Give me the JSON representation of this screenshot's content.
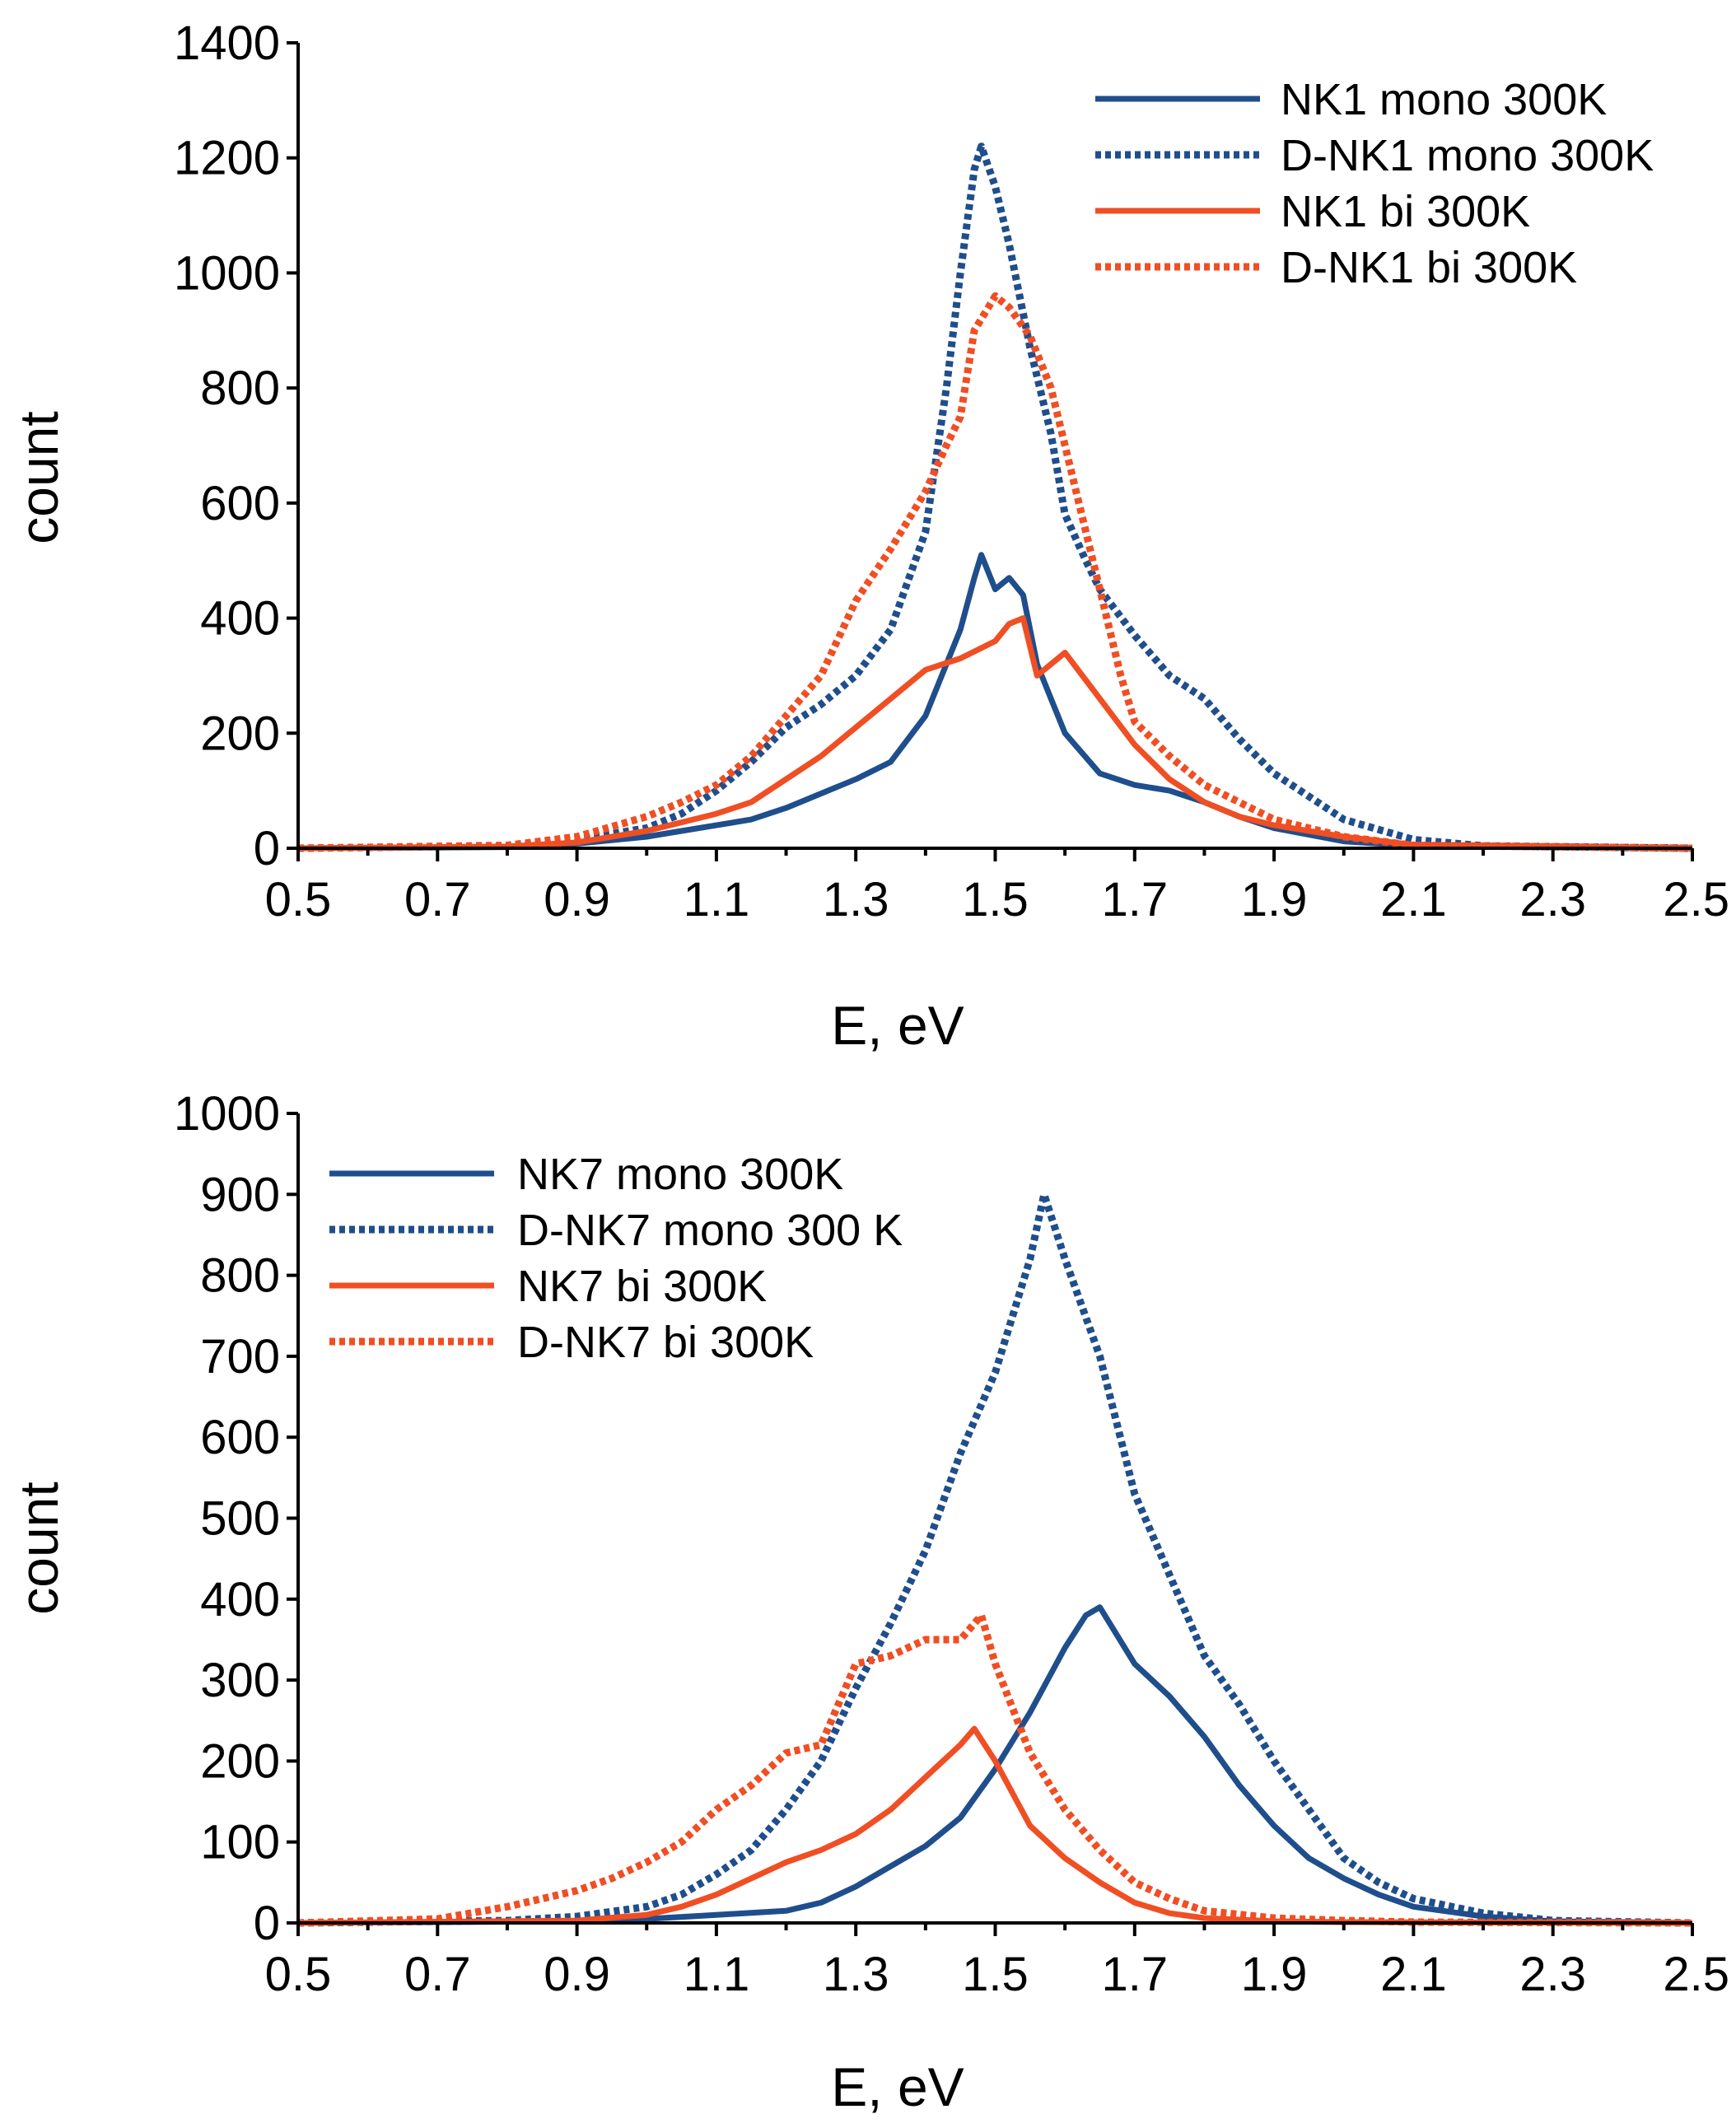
{
  "chart_data": [
    {
      "type": "line",
      "title": "",
      "xlabel": "E, eV",
      "ylabel": "count",
      "xlim": [
        0.5,
        2.5
      ],
      "ylim": [
        0,
        1400
      ],
      "xticks": [
        "0.5",
        "0.7",
        "0.9",
        "1.1",
        "1.3",
        "1.5",
        "1.7",
        "1.9",
        "2.1",
        "2.3",
        "2.5"
      ],
      "yticks": [
        "0",
        "200",
        "400",
        "600",
        "800",
        "1000",
        "1200",
        "1400"
      ],
      "grid": false,
      "legend_position": "top-right",
      "series": [
        {
          "name": "NK1 mono 300K",
          "color": "#1f4e8c",
          "style": "solid",
          "x": [
            0.5,
            0.8,
            0.9,
            1.0,
            1.05,
            1.1,
            1.15,
            1.2,
            1.25,
            1.3,
            1.35,
            1.4,
            1.45,
            1.47,
            1.48,
            1.5,
            1.52,
            1.54,
            1.56,
            1.58,
            1.6,
            1.65,
            1.7,
            1.75,
            1.8,
            1.85,
            1.9,
            2.0,
            2.1,
            2.5
          ],
          "y": [
            0,
            2,
            8,
            20,
            30,
            40,
            50,
            70,
            95,
            120,
            150,
            230,
            380,
            470,
            510,
            450,
            470,
            440,
            320,
            260,
            200,
            130,
            110,
            100,
            80,
            55,
            35,
            12,
            4,
            0
          ]
        },
        {
          "name": "D-NK1 mono 300K",
          "color": "#1f4e8c",
          "style": "dotted",
          "x": [
            0.5,
            0.8,
            0.9,
            1.0,
            1.05,
            1.1,
            1.15,
            1.2,
            1.25,
            1.3,
            1.35,
            1.4,
            1.43,
            1.45,
            1.47,
            1.48,
            1.5,
            1.52,
            1.55,
            1.58,
            1.6,
            1.63,
            1.65,
            1.7,
            1.75,
            1.8,
            1.85,
            1.9,
            1.95,
            2.0,
            2.1,
            2.2,
            2.5
          ],
          "y": [
            0,
            4,
            15,
            35,
            60,
            100,
            150,
            210,
            250,
            300,
            380,
            550,
            800,
            1000,
            1180,
            1220,
            1150,
            1050,
            870,
            720,
            580,
            500,
            450,
            370,
            300,
            260,
            190,
            130,
            90,
            50,
            15,
            4,
            0
          ]
        },
        {
          "name": "NK1 bi 300K",
          "color": "#f04e23",
          "style": "solid",
          "x": [
            0.5,
            0.8,
            0.9,
            1.0,
            1.05,
            1.1,
            1.15,
            1.2,
            1.25,
            1.3,
            1.35,
            1.4,
            1.45,
            1.5,
            1.52,
            1.54,
            1.56,
            1.6,
            1.65,
            1.7,
            1.75,
            1.8,
            1.85,
            1.9,
            2.0,
            2.1,
            2.5
          ],
          "y": [
            0,
            3,
            10,
            30,
            45,
            60,
            80,
            120,
            160,
            210,
            260,
            310,
            330,
            360,
            390,
            400,
            300,
            340,
            260,
            180,
            120,
            80,
            55,
            40,
            20,
            6,
            0
          ]
        },
        {
          "name": "D-NK1 bi 300K",
          "color": "#f04e23",
          "style": "dotted",
          "x": [
            0.5,
            0.8,
            0.9,
            1.0,
            1.05,
            1.1,
            1.15,
            1.2,
            1.25,
            1.3,
            1.35,
            1.4,
            1.43,
            1.45,
            1.47,
            1.5,
            1.52,
            1.55,
            1.58,
            1.6,
            1.62,
            1.65,
            1.68,
            1.7,
            1.75,
            1.8,
            1.85,
            1.9,
            2.0,
            2.1,
            2.5
          ],
          "y": [
            0,
            5,
            20,
            55,
            80,
            110,
            160,
            230,
            300,
            430,
            520,
            620,
            700,
            750,
            900,
            960,
            940,
            890,
            800,
            700,
            600,
            450,
            300,
            220,
            160,
            110,
            80,
            50,
            20,
            5,
            0
          ]
        }
      ]
    },
    {
      "type": "line",
      "title": "",
      "xlabel": "E, eV",
      "ylabel": "count",
      "xlim": [
        0.5,
        2.5
      ],
      "ylim": [
        0,
        1000
      ],
      "xticks": [
        "0.5",
        "0.7",
        "0.9",
        "1.1",
        "1.3",
        "1.5",
        "1.7",
        "1.9",
        "2.1",
        "2.3",
        "2.5"
      ],
      "yticks": [
        "0",
        "100",
        "200",
        "300",
        "400",
        "500",
        "600",
        "700",
        "800",
        "900",
        "1000"
      ],
      "grid": false,
      "legend_position": "top-left",
      "series": [
        {
          "name": "NK7 mono 300K",
          "color": "#1f4e8c",
          "style": "solid",
          "x": [
            0.5,
            0.9,
            1.0,
            1.1,
            1.2,
            1.25,
            1.3,
            1.35,
            1.4,
            1.45,
            1.5,
            1.55,
            1.6,
            1.63,
            1.65,
            1.7,
            1.75,
            1.8,
            1.85,
            1.9,
            1.95,
            2.0,
            2.05,
            2.1,
            2.2,
            2.3,
            2.5
          ],
          "y": [
            0,
            2,
            5,
            10,
            15,
            25,
            45,
            70,
            95,
            130,
            190,
            260,
            340,
            380,
            390,
            320,
            280,
            230,
            170,
            120,
            80,
            55,
            35,
            20,
            8,
            2,
            0
          ]
        },
        {
          "name": "D-NK7 mono 300 K",
          "color": "#1f4e8c",
          "style": "dotted",
          "x": [
            0.5,
            0.8,
            0.9,
            1.0,
            1.05,
            1.1,
            1.15,
            1.2,
            1.25,
            1.3,
            1.35,
            1.4,
            1.45,
            1.5,
            1.55,
            1.57,
            1.6,
            1.65,
            1.7,
            1.75,
            1.8,
            1.85,
            1.9,
            1.95,
            2.0,
            2.05,
            2.1,
            2.2,
            2.3,
            2.5
          ],
          "y": [
            0,
            3,
            8,
            20,
            35,
            60,
            90,
            140,
            200,
            290,
            370,
            460,
            580,
            680,
            820,
            900,
            820,
            700,
            530,
            430,
            330,
            270,
            200,
            140,
            80,
            50,
            30,
            12,
            3,
            0
          ]
        },
        {
          "name": "NK7 bi 300K",
          "color": "#f04e23",
          "style": "solid",
          "x": [
            0.5,
            0.9,
            1.0,
            1.05,
            1.1,
            1.15,
            1.2,
            1.25,
            1.3,
            1.35,
            1.4,
            1.45,
            1.47,
            1.5,
            1.55,
            1.6,
            1.65,
            1.7,
            1.75,
            1.8,
            1.9,
            2.0,
            2.5
          ],
          "y": [
            0,
            3,
            10,
            20,
            35,
            55,
            75,
            90,
            110,
            140,
            180,
            220,
            240,
            200,
            120,
            80,
            50,
            25,
            12,
            6,
            2,
            1,
            0
          ]
        },
        {
          "name": "D-NK7 bi 300K",
          "color": "#f04e23",
          "style": "dotted",
          "x": [
            0.5,
            0.7,
            0.8,
            0.9,
            0.95,
            1.0,
            1.05,
            1.1,
            1.15,
            1.2,
            1.25,
            1.3,
            1.35,
            1.4,
            1.45,
            1.48,
            1.5,
            1.55,
            1.6,
            1.65,
            1.7,
            1.75,
            1.8,
            1.9,
            2.0,
            2.1,
            2.5
          ],
          "y": [
            0,
            5,
            20,
            40,
            55,
            75,
            100,
            140,
            170,
            210,
            220,
            320,
            330,
            350,
            350,
            380,
            320,
            210,
            140,
            90,
            50,
            30,
            15,
            6,
            3,
            1,
            0
          ]
        }
      ]
    }
  ]
}
